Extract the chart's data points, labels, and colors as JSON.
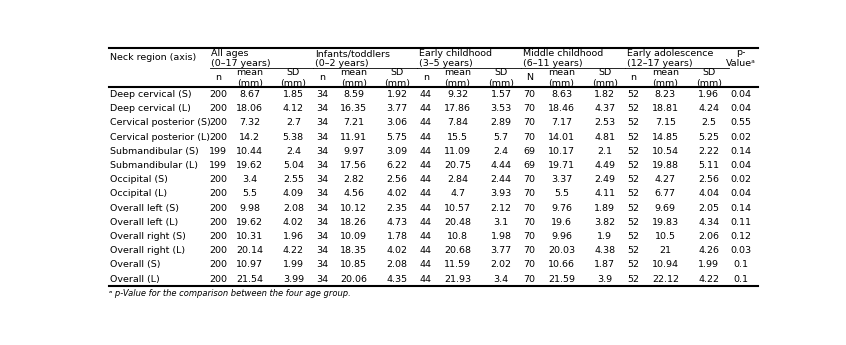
{
  "rows": [
    [
      "Deep cervical (S)",
      "200",
      "8.67",
      "1.85",
      "34",
      "8.59",
      "1.92",
      "44",
      "9.32",
      "1.57",
      "70",
      "8.63",
      "1.82",
      "52",
      "8.23",
      "1.96",
      "0.04"
    ],
    [
      "Deep cervical (L)",
      "200",
      "18.06",
      "4.12",
      "34",
      "16.35",
      "3.77",
      "44",
      "17.86",
      "3.53",
      "70",
      "18.46",
      "4.37",
      "52",
      "18.81",
      "4.24",
      "0.04"
    ],
    [
      "Cervical posterior (S)",
      "200",
      "7.32",
      "2.7",
      "34",
      "7.21",
      "3.06",
      "44",
      "7.84",
      "2.89",
      "70",
      "7.17",
      "2.53",
      "52",
      "7.15",
      "2.5",
      "0.55"
    ],
    [
      "Cervical posterior (L)",
      "200",
      "14.2",
      "5.38",
      "34",
      "11.91",
      "5.75",
      "44",
      "15.5",
      "5.7",
      "70",
      "14.01",
      "4.81",
      "52",
      "14.85",
      "5.25",
      "0.02"
    ],
    [
      "Submandibular (S)",
      "199",
      "10.44",
      "2.4",
      "34",
      "9.97",
      "3.09",
      "44",
      "11.09",
      "2.4",
      "69",
      "10.17",
      "2.1",
      "52",
      "10.54",
      "2.22",
      "0.14"
    ],
    [
      "Submandibular (L)",
      "199",
      "19.62",
      "5.04",
      "34",
      "17.56",
      "6.22",
      "44",
      "20.75",
      "4.44",
      "69",
      "19.71",
      "4.49",
      "52",
      "19.88",
      "5.11",
      "0.04"
    ],
    [
      "Occipital (S)",
      "200",
      "3.4",
      "2.55",
      "34",
      "2.82",
      "2.56",
      "44",
      "2.84",
      "2.44",
      "70",
      "3.37",
      "2.49",
      "52",
      "4.27",
      "2.56",
      "0.02"
    ],
    [
      "Occipital (L)",
      "200",
      "5.5",
      "4.09",
      "34",
      "4.56",
      "4.02",
      "44",
      "4.7",
      "3.93",
      "70",
      "5.5",
      "4.11",
      "52",
      "6.77",
      "4.04",
      "0.04"
    ],
    [
      "Overall left (S)",
      "200",
      "9.98",
      "2.08",
      "34",
      "10.12",
      "2.35",
      "44",
      "10.57",
      "2.12",
      "70",
      "9.76",
      "1.89",
      "52",
      "9.69",
      "2.05",
      "0.14"
    ],
    [
      "Overall left (L)",
      "200",
      "19.62",
      "4.02",
      "34",
      "18.26",
      "4.73",
      "44",
      "20.48",
      "3.1",
      "70",
      "19.6",
      "3.82",
      "52",
      "19.83",
      "4.34",
      "0.11"
    ],
    [
      "Overall right (S)",
      "200",
      "10.31",
      "1.96",
      "34",
      "10.09",
      "1.78",
      "44",
      "10.8",
      "1.98",
      "70",
      "9.96",
      "1.9",
      "52",
      "10.5",
      "2.06",
      "0.12"
    ],
    [
      "Overall right (L)",
      "200",
      "20.14",
      "4.22",
      "34",
      "18.35",
      "4.02",
      "44",
      "20.68",
      "3.77",
      "70",
      "20.03",
      "4.38",
      "52",
      "21",
      "4.26",
      "0.03"
    ],
    [
      "Overall (S)",
      "200",
      "10.97",
      "1.99",
      "34",
      "10.85",
      "2.08",
      "44",
      "11.59",
      "2.02",
      "70",
      "10.66",
      "1.87",
      "52",
      "10.94",
      "1.99",
      "0.1"
    ],
    [
      "Overall (L)",
      "200",
      "21.54",
      "3.99",
      "34",
      "20.06",
      "4.35",
      "44",
      "21.93",
      "3.4",
      "70",
      "21.59",
      "3.9",
      "52",
      "22.12",
      "4.22",
      "0.1"
    ]
  ],
  "group_headers": [
    "All ages\n(0–17 years)",
    "Infants/toddlers\n(0–2 years)",
    "Early childhood\n(3–5 years)",
    "Middle childhood\n(6–11 years)",
    "Early adolescence\n(12–17 years)"
  ],
  "footnote": "ᵃ p-Value for the comparison between the four age group.",
  "font_size": 6.8,
  "bg_color": "#f0f0f0",
  "white": "#ffffff"
}
